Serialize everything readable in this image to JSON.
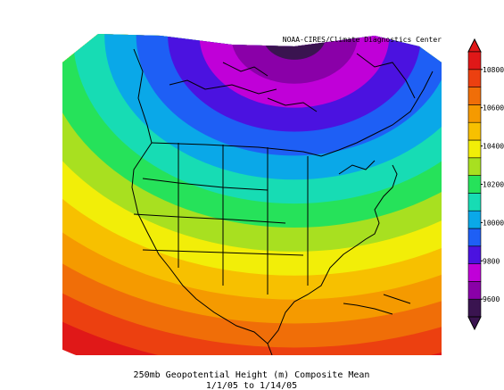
{
  "source_label": "NOAA-CIRES/Climate Diagnostics Center",
  "caption": {
    "line1": "250mb Geopotential Height (m) Composite Mean",
    "line2": "1/1/05  to 1/14/05"
  },
  "colorbar": {
    "colors": [
      "#3a1450",
      "#8a00a8",
      "#c000d8",
      "#4b12e0",
      "#1e5ff5",
      "#0aa8e8",
      "#17dcb4",
      "#26e25a",
      "#a8e020",
      "#f2ee08",
      "#f7c000",
      "#f59a00",
      "#f06e08",
      "#ec4010",
      "#e01818"
    ],
    "tick_labels": [
      "9600",
      "9800",
      "10000",
      "10200",
      "10400",
      "10600",
      "10800"
    ]
  },
  "map_bands": [
    "#e01818",
    "#ec4010",
    "#f06e08",
    "#f59a00",
    "#f7c000",
    "#f2ee08",
    "#a8e020",
    "#26e25a",
    "#17dcb4",
    "#0aa8e8",
    "#1e5ff5",
    "#4b12e0",
    "#c000d8",
    "#8a00a8",
    "#3a1450"
  ]
}
